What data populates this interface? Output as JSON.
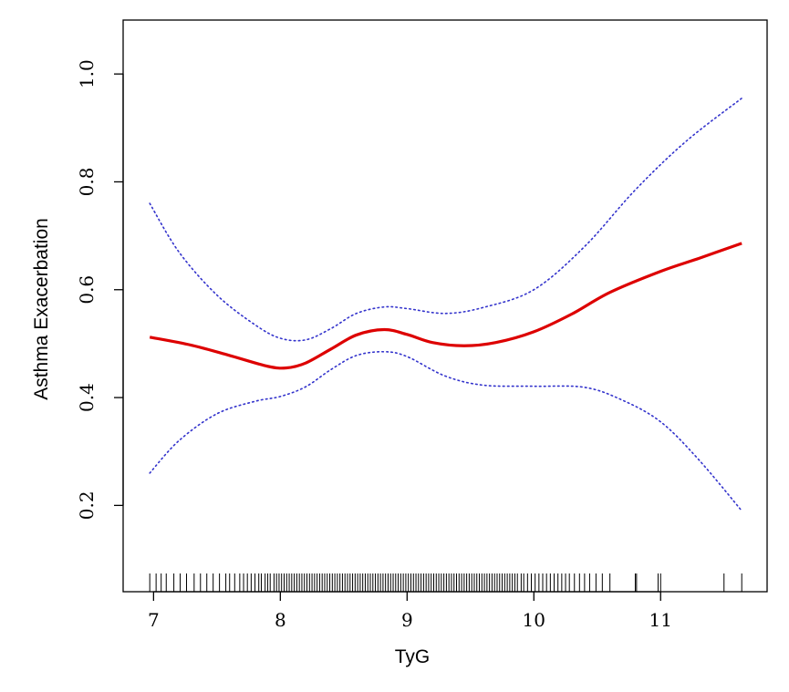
{
  "chart_data": {
    "type": "line",
    "title": "",
    "xlabel": "TyG",
    "ylabel": "Asthma Exacerbation",
    "xlim": [
      6.76,
      11.84
    ],
    "ylim": [
      0.04,
      1.1
    ],
    "x_ticks": [
      7,
      8,
      9,
      10,
      11
    ],
    "x_tick_labels": [
      "7",
      "8",
      "9",
      "10",
      "11"
    ],
    "y_ticks": [
      0.2,
      0.4,
      0.6,
      0.8,
      1.0
    ],
    "y_tick_labels": [
      "0.2",
      "0.4",
      "0.6",
      "0.8",
      "1.0"
    ],
    "grid": false,
    "series": [
      {
        "role": "estimate",
        "color": "#dd0000",
        "style": "solid",
        "x": [
          6.97,
          7.3,
          7.6,
          7.9,
          8.05,
          8.2,
          8.4,
          8.6,
          8.82,
          9.0,
          9.2,
          9.45,
          9.7,
          10.0,
          10.3,
          10.6,
          11.0,
          11.3,
          11.64
        ],
        "y": [
          0.512,
          0.497,
          0.478,
          0.458,
          0.455,
          0.464,
          0.49,
          0.516,
          0.526,
          0.517,
          0.502,
          0.496,
          0.502,
          0.522,
          0.555,
          0.595,
          0.634,
          0.658,
          0.686
        ]
      },
      {
        "role": "upper-ci",
        "color": "#3333cc",
        "style": "dotted",
        "x": [
          6.97,
          7.2,
          7.5,
          7.8,
          8.0,
          8.2,
          8.4,
          8.6,
          8.82,
          9.0,
          9.3,
          9.6,
          10.0,
          10.4,
          10.8,
          11.2,
          11.64
        ],
        "y": [
          0.76,
          0.67,
          0.59,
          0.535,
          0.51,
          0.507,
          0.528,
          0.556,
          0.568,
          0.565,
          0.556,
          0.567,
          0.6,
          0.68,
          0.785,
          0.875,
          0.955
        ]
      },
      {
        "role": "lower-ci",
        "color": "#3333cc",
        "style": "dotted",
        "x": [
          6.97,
          7.2,
          7.5,
          7.8,
          8.0,
          8.2,
          8.4,
          8.6,
          8.82,
          9.0,
          9.3,
          9.6,
          10.0,
          10.4,
          10.7,
          11.0,
          11.3,
          11.64
        ],
        "y": [
          0.26,
          0.32,
          0.37,
          0.393,
          0.402,
          0.42,
          0.452,
          0.478,
          0.485,
          0.476,
          0.44,
          0.423,
          0.421,
          0.419,
          0.395,
          0.355,
          0.285,
          0.19
        ]
      }
    ],
    "rug": [
      6.97,
      7.02,
      7.06,
      7.1,
      7.16,
      7.21,
      7.26,
      7.32,
      7.37,
      7.42,
      7.47,
      7.52,
      7.57,
      7.6,
      7.64,
      7.68,
      7.71,
      7.74,
      7.77,
      7.8,
      7.83,
      7.85,
      7.88,
      7.9,
      7.92,
      7.95,
      7.97,
      7.99,
      8.01,
      8.03,
      8.05,
      8.07,
      8.09,
      8.11,
      8.13,
      8.15,
      8.17,
      8.19,
      8.21,
      8.23,
      8.25,
      8.27,
      8.29,
      8.31,
      8.33,
      8.35,
      8.37,
      8.39,
      8.41,
      8.43,
      8.45,
      8.47,
      8.49,
      8.51,
      8.53,
      8.55,
      8.57,
      8.59,
      8.61,
      8.63,
      8.65,
      8.67,
      8.69,
      8.71,
      8.73,
      8.75,
      8.77,
      8.79,
      8.81,
      8.83,
      8.85,
      8.87,
      8.89,
      8.91,
      8.93,
      8.95,
      8.97,
      8.99,
      9.01,
      9.03,
      9.05,
      9.07,
      9.09,
      9.11,
      9.13,
      9.15,
      9.17,
      9.19,
      9.21,
      9.23,
      9.25,
      9.27,
      9.29,
      9.31,
      9.33,
      9.35,
      9.37,
      9.39,
      9.41,
      9.43,
      9.45,
      9.47,
      9.49,
      9.51,
      9.53,
      9.55,
      9.57,
      9.59,
      9.61,
      9.63,
      9.65,
      9.67,
      9.69,
      9.71,
      9.73,
      9.75,
      9.77,
      9.79,
      9.81,
      9.83,
      9.85,
      9.87,
      9.9,
      9.92,
      9.95,
      9.98,
      10.01,
      10.04,
      10.07,
      10.1,
      10.13,
      10.16,
      10.19,
      10.22,
      10.25,
      10.28,
      10.32,
      10.36,
      10.4,
      10.44,
      10.49,
      10.54,
      10.6,
      10.8,
      10.81,
      10.98,
      11.0,
      11.5,
      11.64
    ]
  }
}
